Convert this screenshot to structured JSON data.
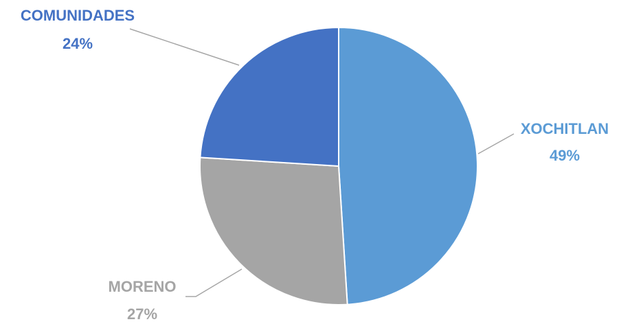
{
  "chart_data": {
    "type": "pie",
    "title": "",
    "start_angle_deg": 0,
    "direction": "clockwise",
    "slices": [
      {
        "label": "XOCHITLAN",
        "percent_label": "49%",
        "value": 49,
        "color": "#5B9BD5",
        "label_color": "#5B9BD5",
        "label_side": "right"
      },
      {
        "label": "MORENO",
        "percent_label": "27%",
        "value": 27,
        "color": "#A5A5A5",
        "label_color": "#A5A5A5",
        "label_side": "bottom-left"
      },
      {
        "label": "COMUNIDADES",
        "percent_label": "24%",
        "value": 24,
        "color": "#4472C4",
        "label_color": "#4472C4",
        "label_side": "top-left"
      }
    ],
    "slice_border_color": "#FFFFFF",
    "leader_line_color": "#A6A6A6"
  }
}
